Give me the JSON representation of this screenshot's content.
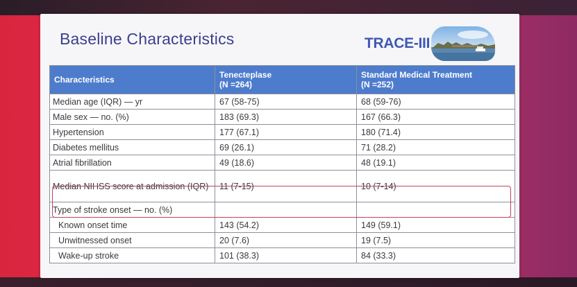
{
  "slide": {
    "title": "Baseline Characteristics",
    "logo_text": "TRACE-III"
  },
  "table": {
    "headers": {
      "characteristics": "Characteristics",
      "group1_name": "Tenecteplase",
      "group1_n": "(N =264)",
      "group2_name": "Standard Medical Treatment",
      "group2_n": "(N =252)"
    },
    "rows": [
      {
        "label": "Median age (IQR) — yr",
        "tnk": "67 (58-75)",
        "smt": "68 (59-76)"
      },
      {
        "label": "Male sex — no. (%)",
        "tnk": "183 (69.3)",
        "smt": "167 (66.3)"
      },
      {
        "label": "Hypertension",
        "tnk": "177 (67.1)",
        "smt": "180 (71.4)"
      },
      {
        "label": "Diabetes mellitus",
        "tnk": "69 (26.1)",
        "smt": "71 (28.2)"
      },
      {
        "label": "Atrial fibrillation",
        "tnk": "49 (18.6)",
        "smt": "48 (19.1)"
      },
      {
        "label": "Median NIHSS score at admission (IQR)",
        "tnk": "11 (7-15)",
        "smt": "10 (7-14)"
      },
      {
        "label": "Type of stroke onset — no. (%)",
        "tnk": "",
        "smt": ""
      },
      {
        "label": "Known onset time",
        "tnk": "143 (54.2)",
        "smt": "149 (59.1)"
      },
      {
        "label": "Unwitnessed onset",
        "tnk": "20 (7.6)",
        "smt": "19 (7.5)"
      },
      {
        "label": "Wake-up stroke",
        "tnk": "101 (38.3)",
        "smt": "84 (33.3)"
      }
    ]
  },
  "colors": {
    "header_bg": "#4e7ccd",
    "title": "#3a3f8f",
    "logo": "#3e58b4",
    "highlight": "#c4405a"
  }
}
